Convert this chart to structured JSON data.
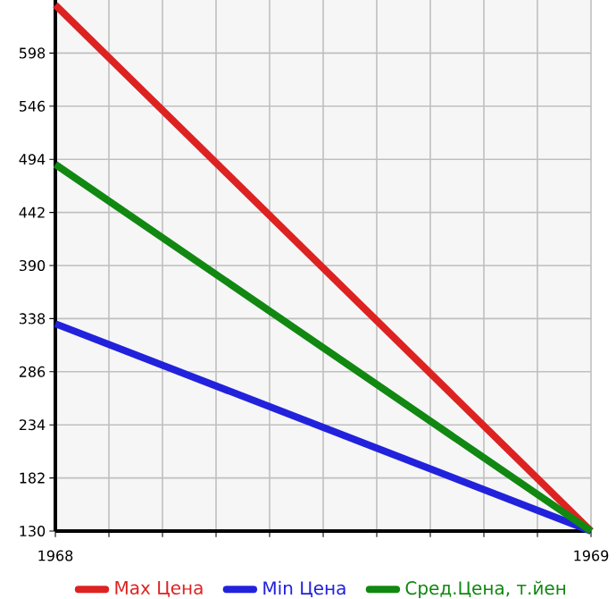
{
  "chart_data": {
    "type": "line",
    "x": [
      1968,
      1969
    ],
    "series": [
      {
        "name": "Max Цена",
        "color": "#dd2222",
        "values": [
          645,
          130
        ]
      },
      {
        "name": "Min Цена",
        "color": "#2222dd",
        "values": [
          333,
          130
        ]
      },
      {
        "name": "Сред.Цена, т.йен",
        "color": "#118811",
        "values": [
          489,
          130
        ]
      }
    ],
    "xlim": [
      1968,
      1969
    ],
    "ylim": [
      130,
      650
    ],
    "xticks": [
      1968,
      {
        "value": 1968.1,
        "label": null
      },
      {
        "value": 1968.2,
        "label": null
      },
      {
        "value": 1968.3,
        "label": null
      },
      {
        "value": 1968.4,
        "label": null
      },
      {
        "value": 1968.5,
        "label": null
      },
      {
        "value": 1968.6,
        "label": null
      },
      {
        "value": 1968.7,
        "label": null
      },
      {
        "value": 1968.8,
        "label": null
      },
      {
        "value": 1968.9,
        "label": null
      },
      1969
    ],
    "yticks": [
      130,
      182,
      234,
      286,
      338,
      390,
      442,
      494,
      546,
      598
    ],
    "grid": true,
    "legend": "bottom",
    "marker": "none",
    "line_style": "solid"
  }
}
